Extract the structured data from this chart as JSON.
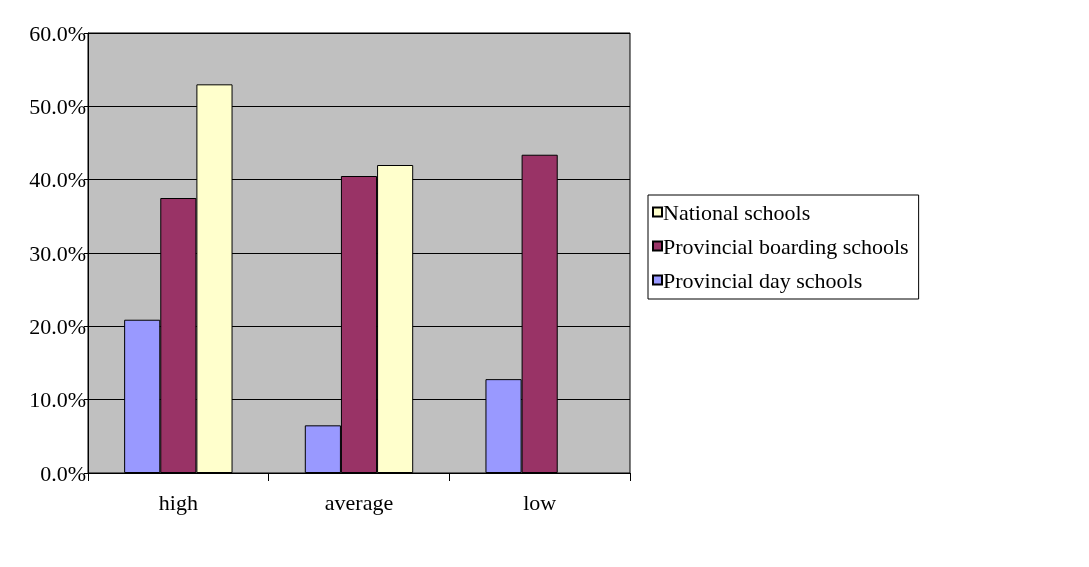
{
  "chart_data": {
    "type": "bar",
    "categories": [
      "high",
      "average",
      "low"
    ],
    "series": [
      {
        "name": "Provincial day schools",
        "color": "#9999ff",
        "values": [
          20.9,
          6.5,
          12.8
        ]
      },
      {
        "name": "Provincial boarding schools",
        "color": "#993366",
        "values": [
          37.5,
          40.5,
          43.4
        ]
      },
      {
        "name": "National schools",
        "color": "#ffffcc",
        "values": [
          53.0,
          42.0,
          null
        ]
      }
    ],
    "ylim": [
      0,
      60
    ],
    "yticks": [
      {
        "value": 0,
        "label": "0.0%"
      },
      {
        "value": 10,
        "label": "10.0%"
      },
      {
        "value": 20,
        "label": "20.0%"
      },
      {
        "value": 30,
        "label": "30.0%"
      },
      {
        "value": 40,
        "label": "40.0%"
      },
      {
        "value": 50,
        "label": "50.0%"
      },
      {
        "value": 60,
        "label": "60.0%"
      }
    ],
    "grid": "y",
    "legend": "right"
  }
}
